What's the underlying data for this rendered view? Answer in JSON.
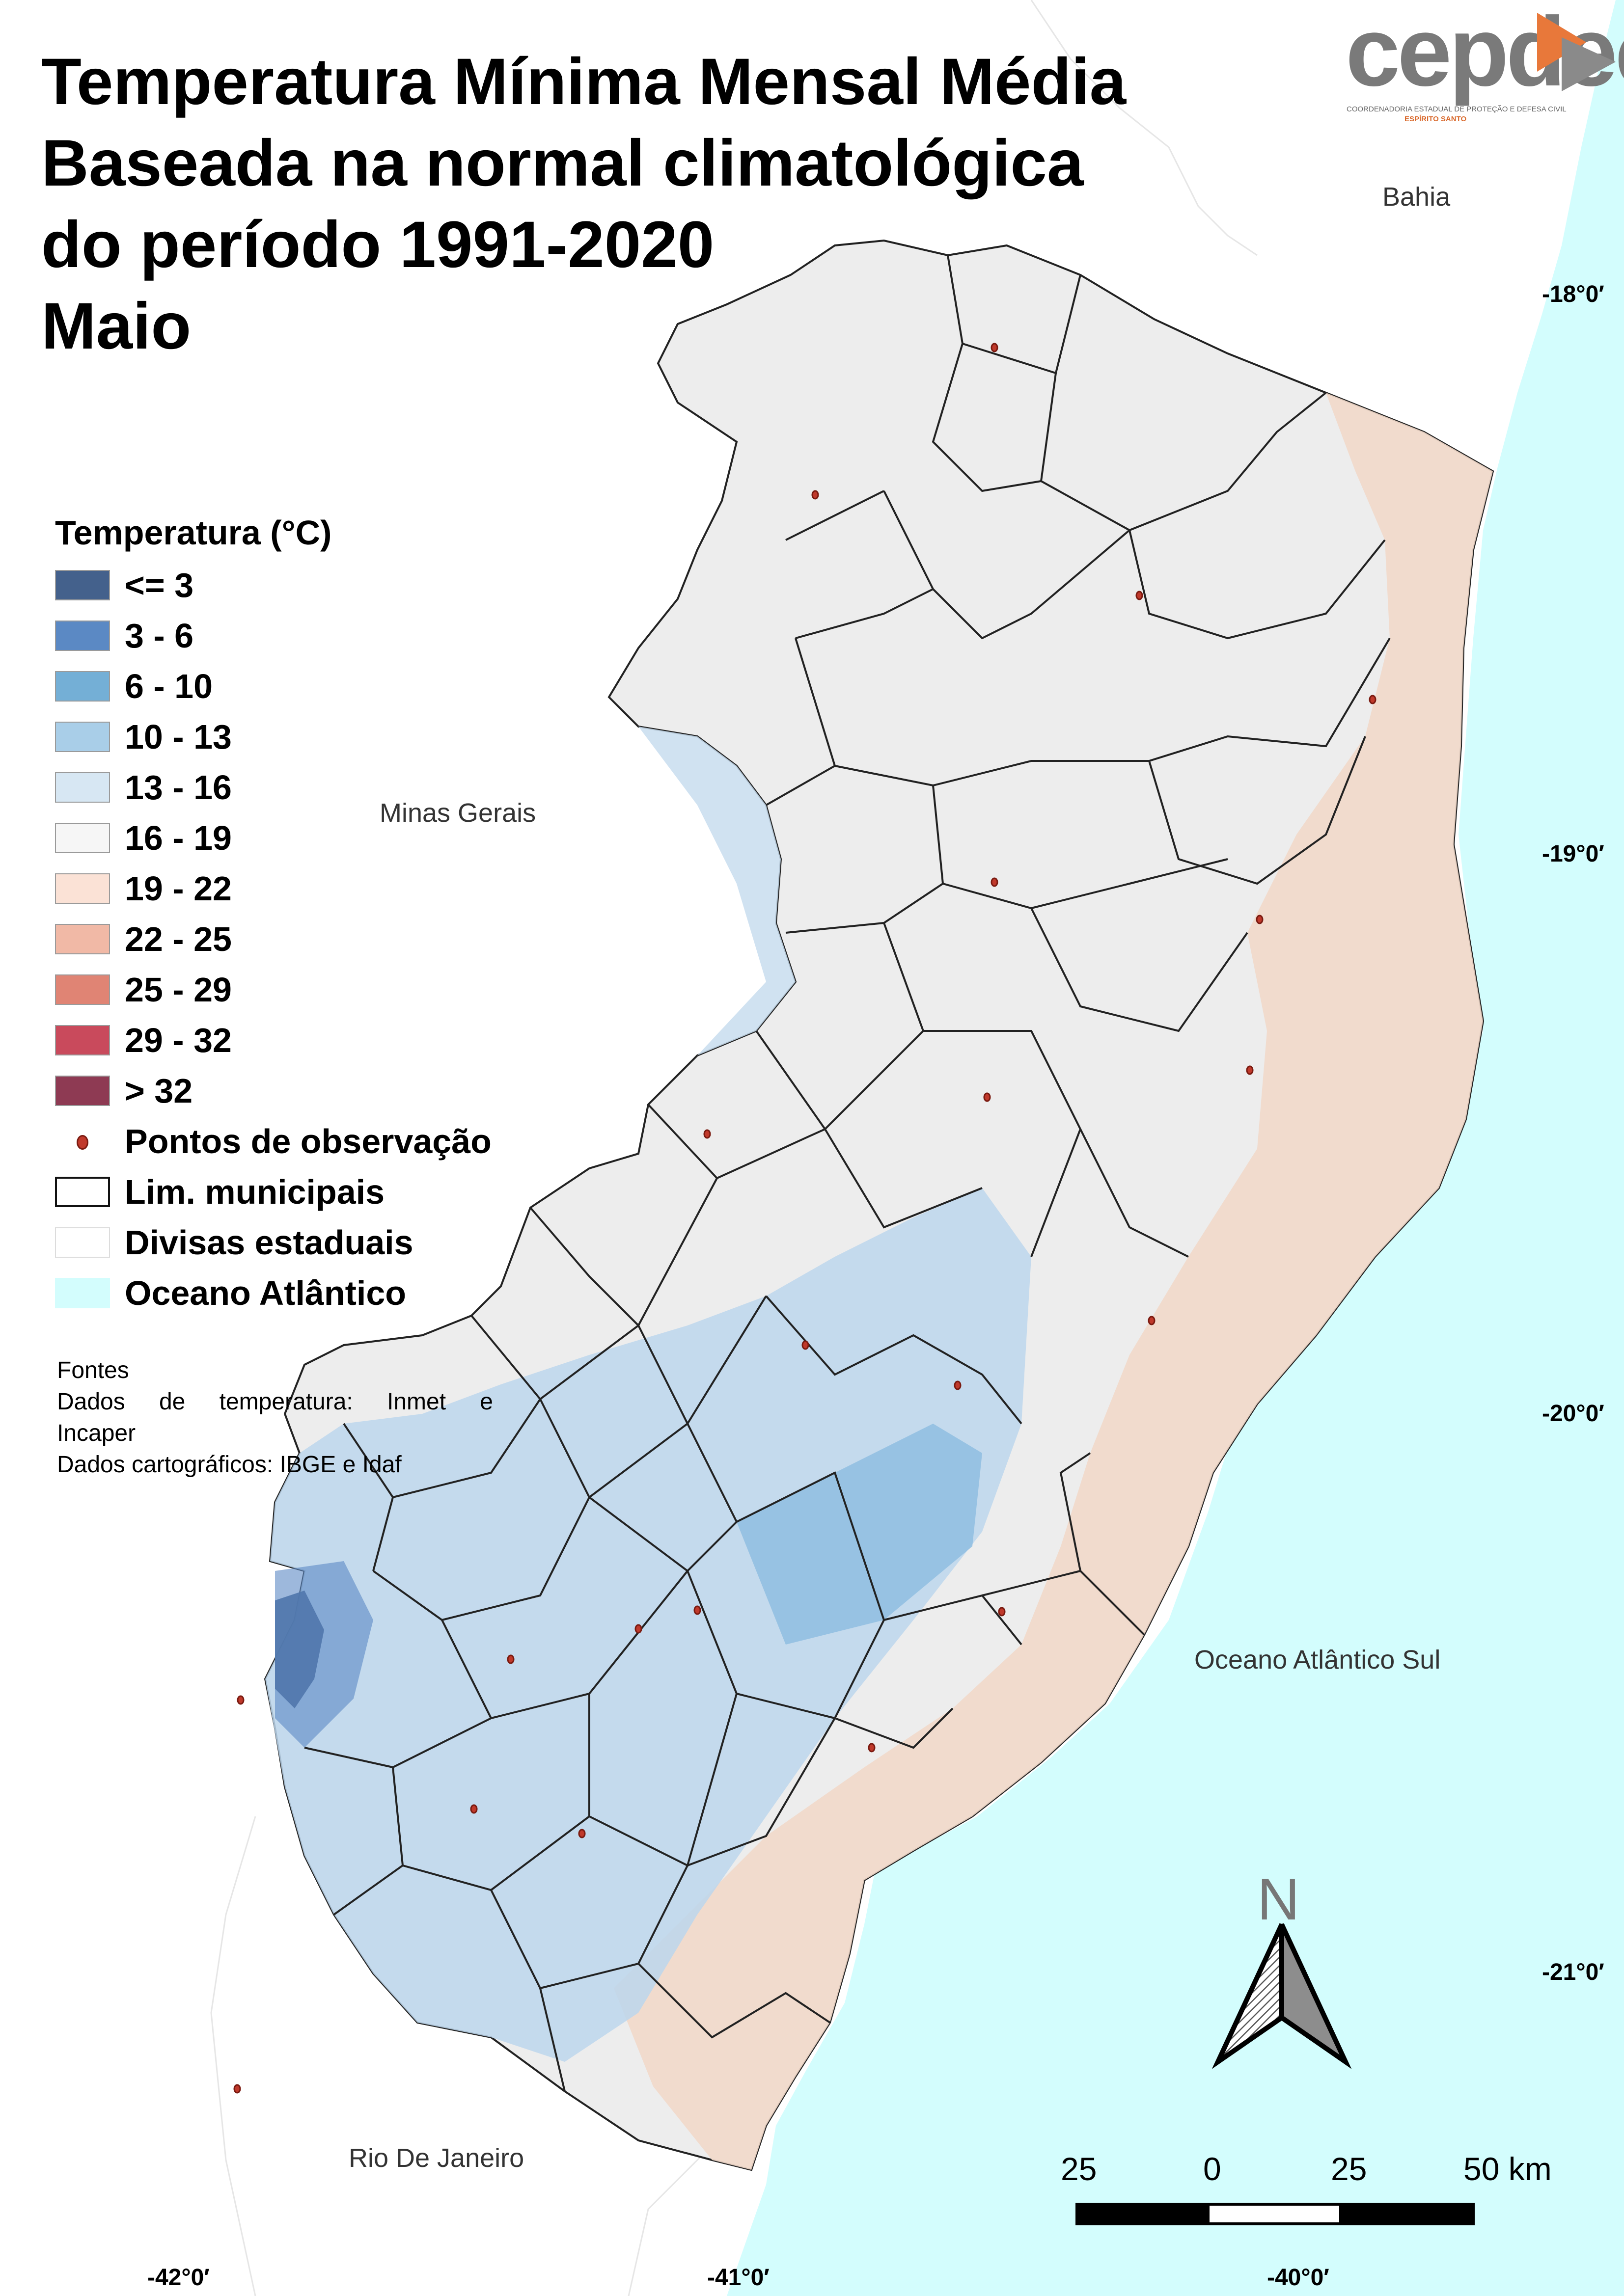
{
  "title": {
    "line1": "Temperatura Mínima Mensal Média",
    "line2": "Baseada na normal climatológica",
    "line3": "do período 1991-2020",
    "line4": "Maio"
  },
  "logo": {
    "wordmark": "cepdec",
    "subtitle": "COORDENADORIA ESTADUAL DE PROTEÇÃO E DEFESA CIVIL",
    "subtitle2": "ESPÍRITO SANTO"
  },
  "places": {
    "bahia": "Bahia",
    "minas_gerais": "Minas Gerais",
    "oceano": "Oceano Atlântico Sul",
    "rio": "Rio De Janeiro"
  },
  "coords": {
    "lat_18": "-18°0′",
    "lat_19": "-19°0′",
    "lat_20": "-20°0′",
    "lat_21": "-21°0′",
    "lon_42": "-42°0′",
    "lon_41": "-41°0′",
    "lon_40": "-40°0′"
  },
  "legend": {
    "title": "Temperatura (°C)",
    "classes": [
      {
        "label": "<= 3",
        "color": "#44618c"
      },
      {
        "label": "3 - 6",
        "color": "#5b89c4"
      },
      {
        "label": "6 - 10",
        "color": "#74afd6"
      },
      {
        "label": "10 - 13",
        "color": "#a9cee8"
      },
      {
        "label": "13 - 16",
        "color": "#d7e7f3"
      },
      {
        "label": "16 - 19",
        "color": "#f6f6f6"
      },
      {
        "label": "19 - 22",
        "color": "#fbe2d6"
      },
      {
        "label": "22 - 25",
        "color": "#f1b9a6"
      },
      {
        "label": "25 - 29",
        "color": "#e08474"
      },
      {
        "label": "29 - 32",
        "color": "#c94a5c"
      },
      {
        "label": "> 32",
        "color": "#8e3a53"
      }
    ],
    "points_label": "Pontos de observação",
    "municipal_label": "Lim. municipais",
    "state_label": "Divisas estaduais",
    "ocean_label": "Oceano Atlântico",
    "ocean_color": "#d3fdfd"
  },
  "sources": {
    "heading": "Fontes",
    "line1_words": [
      "Dados",
      "de",
      "temperatura:",
      "Inmet",
      "e"
    ],
    "line2": "Incaper",
    "line3": "Dados cartográficos: IBGE e Idaf"
  },
  "north": {
    "letter": "N"
  },
  "scale": {
    "labels": [
      "25",
      "0",
      "25",
      "50 km"
    ]
  }
}
